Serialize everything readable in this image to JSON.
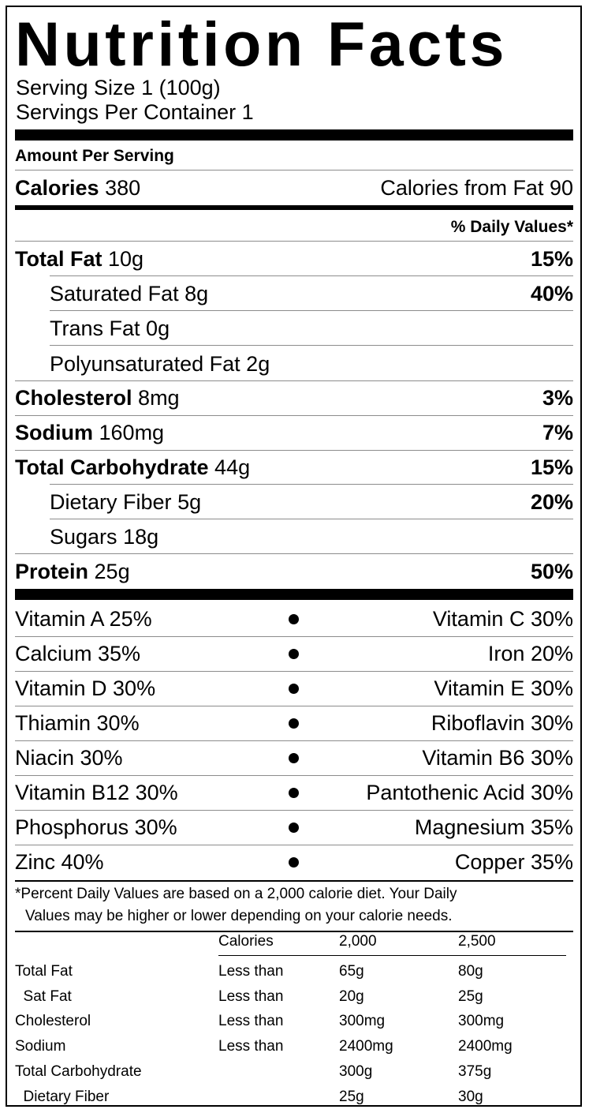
{
  "title": "Nutrition Facts",
  "serving_size": "Serving Size 1  (100g)",
  "servings_per_container": "Servings Per Container 1",
  "amount_per_serving": "Amount Per Serving",
  "calories": {
    "label": "Calories",
    "value": "380",
    "from_fat": "Calories from Fat 90"
  },
  "daily_values_header": "% Daily Values*",
  "nutrients": [
    {
      "label": "Total Fat",
      "amount": "10g",
      "dv": "15%"
    },
    {
      "label": "Saturated Fat",
      "amount": "8g",
      "dv": "40%"
    },
    {
      "label": "Trans Fat",
      "amount": "0g",
      "dv": ""
    },
    {
      "label": "Polyunsaturated Fat",
      "amount": "2g",
      "dv": ""
    },
    {
      "label": "Cholesterol",
      "amount": "8mg",
      "dv": "3%"
    },
    {
      "label": "Sodium",
      "amount": "160mg",
      "dv": "7%"
    },
    {
      "label": "Total Carbohydrate",
      "amount": "44g",
      "dv": "15%"
    },
    {
      "label": "Dietary Fiber",
      "amount": "5g",
      "dv": "20%"
    },
    {
      "label": "Sugars",
      "amount": "18g",
      "dv": ""
    },
    {
      "label": "Protein",
      "amount": "25g",
      "dv": "50%"
    }
  ],
  "vitamins": [
    {
      "left": "Vitamin A 25%",
      "right": "Vitamin C 30%"
    },
    {
      "left": "Calcium 35%",
      "right": "Iron 20%"
    },
    {
      "left": "Vitamin D 30%",
      "right": "Vitamin E 30%"
    },
    {
      "left": "Thiamin 30%",
      "right": "Riboflavin 30%"
    },
    {
      "left": "Niacin 30%",
      "right": "Vitamin B6 30%"
    },
    {
      "left": "Vitamin B12 30%",
      "right": "Pantothenic Acid 30%"
    },
    {
      "left": "Phosphorus 30%",
      "right": "Magnesium 35%"
    },
    {
      "left": "Zinc 40%",
      "right": "Copper 35%"
    }
  ],
  "footnote": {
    "line1": "*Percent Daily Values are based on a 2,000 calorie diet. Your Daily",
    "line2": "Values may be higher or lower depending on your calorie needs."
  },
  "footer_table": {
    "header": [
      "",
      "Calories",
      "2,000",
      "2,500"
    ],
    "rows": [
      [
        "Total Fat",
        "Less than",
        "65g",
        "80g"
      ],
      [
        "  Sat Fat",
        "Less than",
        "20g",
        "25g"
      ],
      [
        "Cholesterol",
        "Less than",
        "300mg",
        "300mg"
      ],
      [
        "Sodium",
        "Less than",
        "2400mg",
        "2400mg"
      ],
      [
        "Total Carbohydrate",
        "",
        "300g",
        "375g"
      ],
      [
        "  Dietary Fiber",
        "",
        "25g",
        "30g"
      ]
    ]
  }
}
